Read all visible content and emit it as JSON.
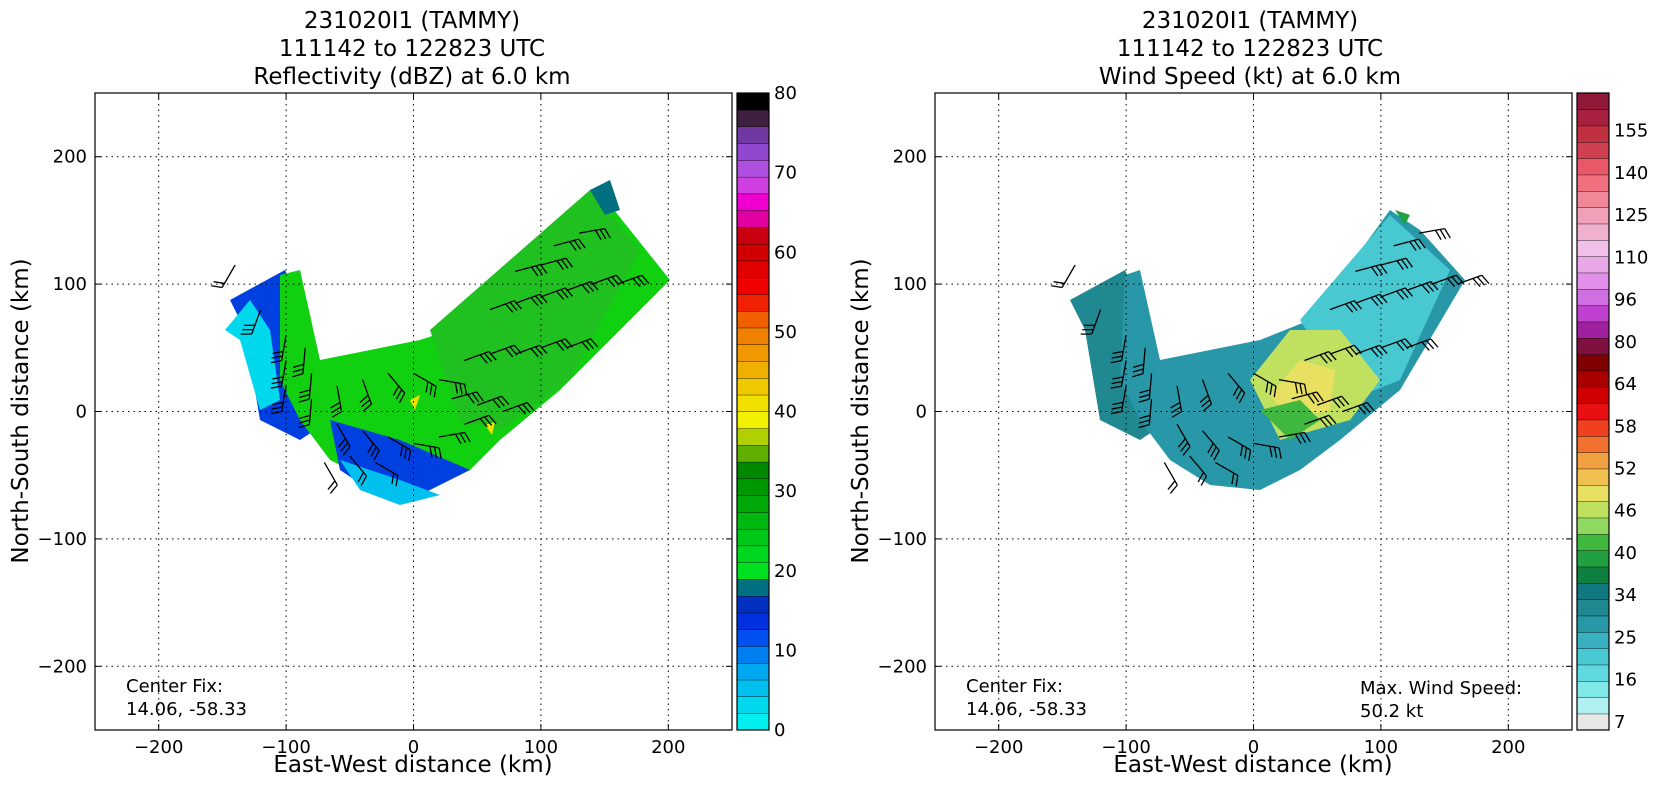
{
  "chart_data": [
    {
      "type": "heatmap",
      "title_lines": [
        "231020I1 (TAMMY)",
        "111142 to 122823 UTC",
        "Reflectivity (dBZ) at 6.0 km"
      ],
      "xlabel": "East-West distance (km)",
      "ylabel": "North-South distance (km)",
      "xlim": [
        -250,
        250
      ],
      "ylim": [
        -250,
        250
      ],
      "xticks": [
        -200,
        -100,
        0,
        100,
        200
      ],
      "yticks": [
        -200,
        -100,
        0,
        100,
        200
      ],
      "grid": true,
      "annotation": "Center Fix:\n14.06, -58.33",
      "colorbar": {
        "label_values": [
          0,
          10,
          20,
          30,
          40,
          50,
          60,
          70,
          80
        ],
        "vmin": 0,
        "vmax": 80,
        "colors": [
          "#00eeee",
          "#00d8ee",
          "#00c0f0",
          "#00a8f0",
          "#0080f0",
          "#0050f0",
          "#0030e0",
          "#0030c0",
          "#007080",
          "#00e020",
          "#00d820",
          "#00c818",
          "#00b810",
          "#00a808",
          "#009800",
          "#008800",
          "#60b000",
          "#b0d000",
          "#f0f000",
          "#f0e000",
          "#f0c800",
          "#f0b000",
          "#f09800",
          "#f08000",
          "#f06000",
          "#f02000",
          "#f00000",
          "#e00000",
          "#d00000",
          "#c80010",
          "#e000a0",
          "#f000d0",
          "#d040e0",
          "#b050e0",
          "#9048d0",
          "#7038a0",
          "#402040",
          "#000000"
        ]
      },
      "winds": {
        "note": "wind barbs (direction in degrees toward which barb shaft points from station, speed kt)",
        "points": [
          [
            -140,
            115,
            210,
            20
          ],
          [
            -120,
            80,
            200,
            25
          ],
          [
            -100,
            60,
            190,
            25
          ],
          [
            -85,
            50,
            185,
            25
          ],
          [
            -100,
            20,
            190,
            25
          ],
          [
            -80,
            10,
            185,
            25
          ],
          [
            -60,
            20,
            170,
            25
          ],
          [
            -40,
            25,
            160,
            25
          ],
          [
            -20,
            30,
            140,
            25
          ],
          [
            0,
            30,
            120,
            25
          ],
          [
            20,
            25,
            100,
            30
          ],
          [
            -60,
            -10,
            150,
            25
          ],
          [
            -40,
            -15,
            140,
            25
          ],
          [
            -20,
            -20,
            120,
            25
          ],
          [
            0,
            -25,
            100,
            25
          ],
          [
            20,
            -20,
            80,
            25
          ],
          [
            40,
            -10,
            70,
            25
          ],
          [
            -70,
            -40,
            150,
            20
          ],
          [
            -50,
            -35,
            140,
            20
          ],
          [
            -30,
            -40,
            120,
            20
          ],
          [
            30,
            10,
            75,
            30
          ],
          [
            50,
            5,
            70,
            30
          ],
          [
            70,
            0,
            70,
            30
          ],
          [
            40,
            40,
            70,
            30
          ],
          [
            60,
            45,
            70,
            30
          ],
          [
            80,
            45,
            70,
            30
          ],
          [
            100,
            50,
            70,
            30
          ],
          [
            120,
            50,
            70,
            30
          ],
          [
            60,
            80,
            70,
            25
          ],
          [
            80,
            85,
            70,
            25
          ],
          [
            100,
            90,
            70,
            25
          ],
          [
            120,
            95,
            70,
            25
          ],
          [
            140,
            100,
            70,
            25
          ],
          [
            160,
            100,
            70,
            25
          ],
          [
            110,
            130,
            75,
            25
          ],
          [
            130,
            140,
            80,
            25
          ],
          [
            80,
            110,
            75,
            25
          ],
          [
            100,
            115,
            75,
            25
          ],
          [
            -100,
            40,
            190,
            25
          ],
          [
            -80,
            30,
            185,
            25
          ]
        ]
      }
    },
    {
      "type": "heatmap",
      "title_lines": [
        "231020I1 (TAMMY)",
        "111142 to 122823 UTC",
        "Wind Speed (kt) at 6.0 km"
      ],
      "xlabel": "East-West distance (km)",
      "ylabel": "North-South distance (km)",
      "xlim": [
        -250,
        250
      ],
      "ylim": [
        -250,
        250
      ],
      "xticks": [
        -200,
        -100,
        0,
        100,
        200
      ],
      "yticks": [
        -200,
        -100,
        0,
        100,
        200
      ],
      "grid": true,
      "annotation": "Center Fix:\n14.06, -58.33",
      "annotation2": "Max. Wind Speed:\n50.2 kt",
      "colorbar": {
        "label_values": [
          7,
          16,
          25,
          34,
          40,
          46,
          52,
          58,
          64,
          80,
          96,
          110,
          125,
          140,
          155
        ],
        "colors": [
          "#e8e8e8",
          "#b0f0f0",
          "#80e8e8",
          "#60d8e0",
          "#48c8d0",
          "#38b0c0",
          "#2898a8",
          "#208890",
          "#107880",
          "#108040",
          "#20a040",
          "#40b840",
          "#90d860",
          "#c0e060",
          "#e8e060",
          "#f0c050",
          "#f0a040",
          "#f07030",
          "#f04020",
          "#e81010",
          "#d00000",
          "#a80000",
          "#800000",
          "#801040",
          "#a020a0",
          "#c040d0",
          "#d070e0",
          "#e090e8",
          "#e8a8e8",
          "#f0c0e8",
          "#f0b0d0",
          "#f0a0b8",
          "#f08898",
          "#f07080",
          "#e85868",
          "#d04050",
          "#c03040",
          "#a82040",
          "#901838"
        ]
      },
      "max_wind_kt": 50.2
    }
  ]
}
